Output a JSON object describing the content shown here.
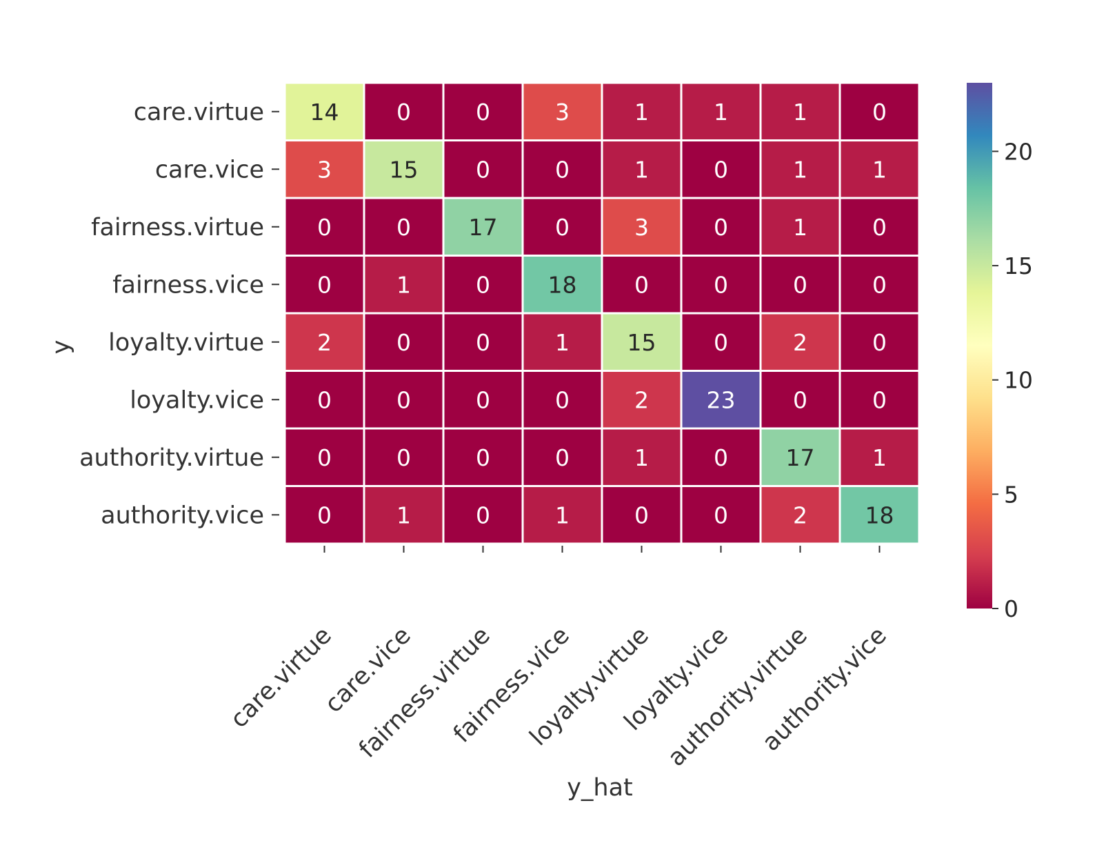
{
  "chart_data": {
    "type": "heatmap",
    "title": "",
    "xlabel": "y_hat",
    "ylabel": "y",
    "row_labels": [
      "care.virtue",
      "care.vice",
      "fairness.virtue",
      "fairness.vice",
      "loyalty.virtue",
      "loyalty.vice",
      "authority.virtue",
      "authority.vice"
    ],
    "col_labels": [
      "care.virtue",
      "care.vice",
      "fairness.virtue",
      "fairness.vice",
      "loyalty.virtue",
      "loyalty.vice",
      "authority.virtue",
      "authority.vice"
    ],
    "values": [
      [
        14,
        0,
        0,
        3,
        1,
        1,
        1,
        0
      ],
      [
        3,
        15,
        0,
        0,
        1,
        0,
        1,
        1
      ],
      [
        0,
        0,
        17,
        0,
        3,
        0,
        1,
        0
      ],
      [
        0,
        1,
        0,
        18,
        0,
        0,
        0,
        0
      ],
      [
        2,
        0,
        0,
        1,
        15,
        0,
        2,
        0
      ],
      [
        0,
        0,
        0,
        0,
        2,
        23,
        0,
        0
      ],
      [
        0,
        0,
        0,
        0,
        1,
        0,
        17,
        1
      ],
      [
        0,
        1,
        0,
        1,
        0,
        0,
        2,
        18
      ]
    ],
    "colormap": "Spectral",
    "vmin": 0,
    "vmax": 23,
    "colorbar_ticks": [
      "0",
      "5",
      "10",
      "15",
      "20"
    ],
    "annotations": true,
    "grid": false
  }
}
